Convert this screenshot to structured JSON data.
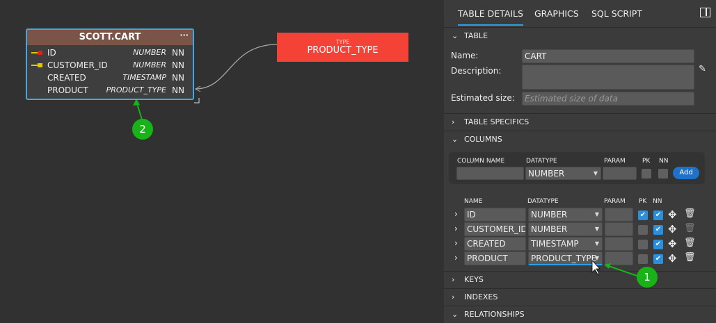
{
  "canvas": {
    "entity": {
      "title": "SCOTT.CART",
      "menu": "···",
      "columns": [
        {
          "name": "ID",
          "type": "NUMBER",
          "nn": "NN",
          "key": "primary"
        },
        {
          "name": "CUSTOMER_ID",
          "type": "NUMBER",
          "nn": "NN",
          "key": "foreign"
        },
        {
          "name": "CREATED",
          "type": "TIMESTAMP",
          "nn": "NN",
          "key": ""
        },
        {
          "name": "PRODUCT",
          "type": "PRODUCT_TYPE",
          "nn": "NN",
          "key": ""
        }
      ]
    },
    "type_box": {
      "subtitle": "TYPE",
      "name": "PRODUCT_TYPE",
      "color": "#f44236"
    }
  },
  "annotations": {
    "one": "1",
    "two": "2"
  },
  "panel": {
    "tabs": [
      "TABLE DETAILS",
      "GRAPHICS",
      "SQL SCRIPT"
    ],
    "active_tab": "TABLE DETAILS",
    "sections": {
      "table": "TABLE",
      "specifics": "TABLE SPECIFICS",
      "columns": "COLUMNS",
      "keys": "KEYS",
      "indexes": "INDEXES",
      "relationships": "RELATIONSHIPS"
    },
    "table": {
      "name_label": "Name:",
      "name_value": "CART",
      "desc_label": "Description:",
      "desc_value": "",
      "size_label": "Estimated size:",
      "size_placeholder": "Estimated size of data"
    },
    "new_column": {
      "h_name": "COLUMN NAME",
      "h_type": "DATATYPE",
      "h_param": "PARAM",
      "h_pk": "PK",
      "h_nn": "NN",
      "name": "",
      "datatype": "NUMBER",
      "param": "",
      "add": "Add"
    },
    "col_headers": {
      "name": "NAME",
      "type": "DATATYPE",
      "param": "PARAM",
      "pk": "PK",
      "nn": "NN"
    },
    "rows": [
      {
        "name": "ID",
        "datatype": "NUMBER",
        "param": "",
        "pk": true,
        "nn": true
      },
      {
        "name": "CUSTOMER_ID",
        "datatype": "NUMBER",
        "param": "",
        "pk": false,
        "nn": true
      },
      {
        "name": "CREATED",
        "datatype": "TIMESTAMP",
        "param": "",
        "pk": false,
        "nn": true
      },
      {
        "name": "PRODUCT",
        "datatype": "PRODUCT_TYPE",
        "param": "",
        "pk": false,
        "nn": true
      }
    ],
    "accent": "#2aa0e6"
  }
}
